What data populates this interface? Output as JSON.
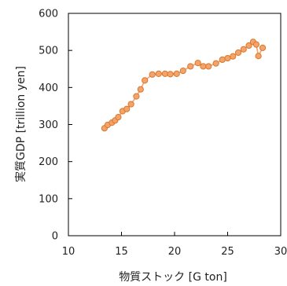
{
  "chart_data": {
    "type": "line",
    "title": "",
    "xlabel": "物質ストック [G ton]",
    "ylabel": "実質GDP [trillion yen]",
    "xlim": [
      10,
      30
    ],
    "ylim": [
      0,
      600
    ],
    "x_ticks": [
      "10",
      "15",
      "20",
      "25",
      "30"
    ],
    "y_ticks": [
      "0",
      "100",
      "200",
      "300",
      "400",
      "500",
      "600"
    ],
    "grid": false,
    "legend": "none",
    "series": [
      {
        "color": "#F4A46A",
        "edge_color": "#D9782E",
        "points": [
          [
            13.4,
            290
          ],
          [
            13.7,
            299
          ],
          [
            14.1,
            305
          ],
          [
            14.4,
            311
          ],
          [
            14.7,
            320
          ],
          [
            15.1,
            336
          ],
          [
            15.5,
            342
          ],
          [
            15.9,
            355
          ],
          [
            16.4,
            376
          ],
          [
            16.8,
            395
          ],
          [
            17.2,
            419
          ],
          [
            17.9,
            435
          ],
          [
            18.5,
            437
          ],
          [
            19.1,
            437
          ],
          [
            19.6,
            436
          ],
          [
            20.2,
            437
          ],
          [
            20.8,
            445
          ],
          [
            21.5,
            457
          ],
          [
            22.2,
            466
          ],
          [
            22.7,
            457
          ],
          [
            23.2,
            457
          ],
          [
            23.9,
            465
          ],
          [
            24.5,
            475
          ],
          [
            25.0,
            479
          ],
          [
            25.5,
            484
          ],
          [
            26.0,
            494
          ],
          [
            26.5,
            503
          ],
          [
            27.0,
            513
          ],
          [
            27.4,
            523
          ],
          [
            27.7,
            516
          ],
          [
            27.9,
            485
          ],
          [
            28.3,
            507
          ]
        ]
      }
    ]
  }
}
